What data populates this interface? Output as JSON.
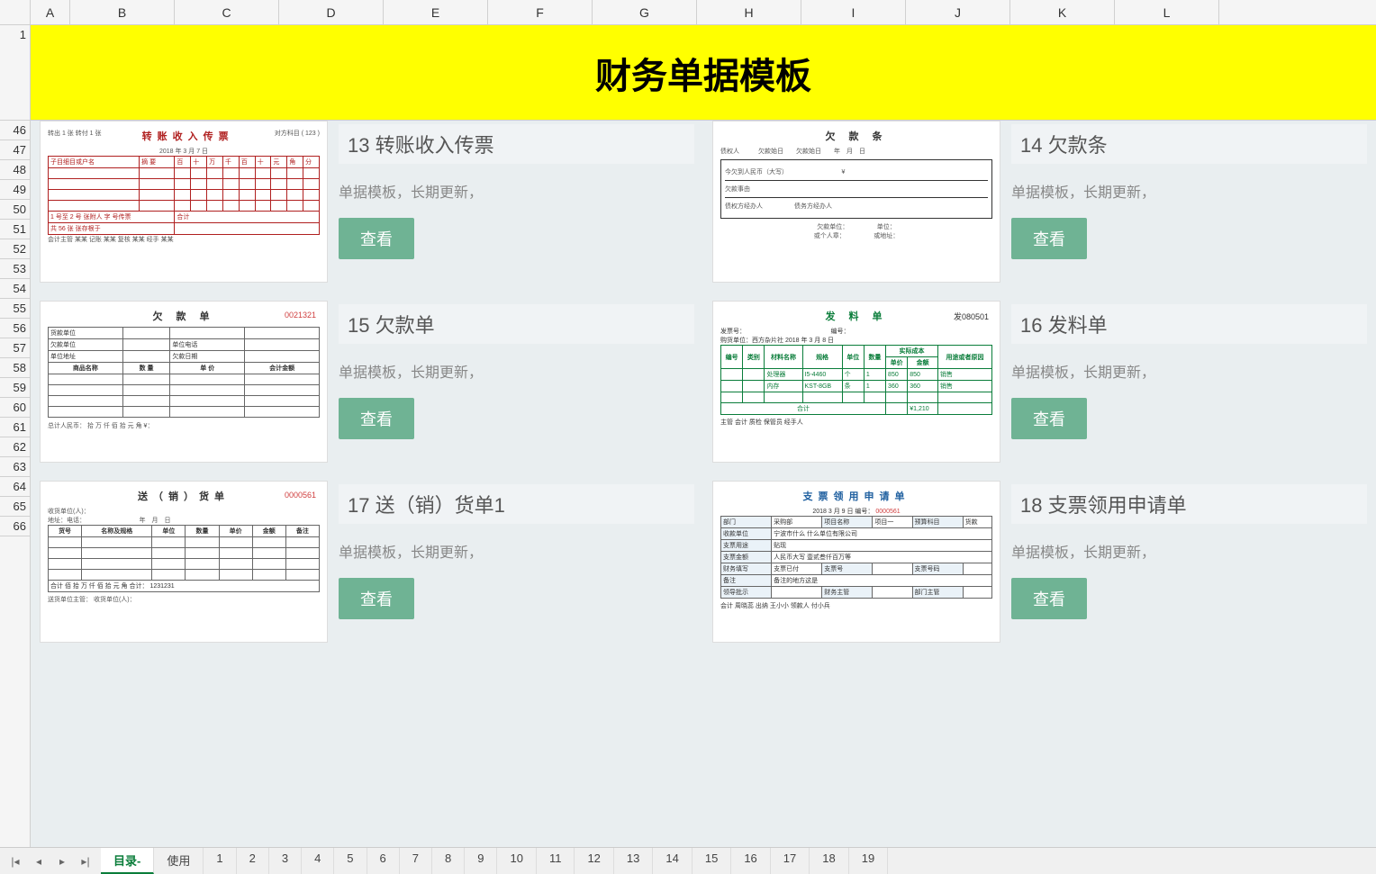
{
  "columns": [
    "A",
    "B",
    "C",
    "D",
    "E",
    "F",
    "G",
    "H",
    "I",
    "J",
    "K",
    "L"
  ],
  "rows": [
    "1",
    "46",
    "47",
    "48",
    "49",
    "50",
    "51",
    "52",
    "53",
    "54",
    "55",
    "56",
    "57",
    "58",
    "59",
    "60",
    "61",
    "62",
    "63",
    "64",
    "65",
    "66"
  ],
  "banner_title": "财务单据模板",
  "templates": [
    {
      "num": "13",
      "title": "13 转账收入传票",
      "desc": "单据模板，长期更新，",
      "btn": "查看",
      "preview_title": "转账收入传票",
      "preview_style": "red",
      "preview_no": "",
      "sub": "2018 年 3 月 7 日"
    },
    {
      "num": "14",
      "title": "14 欠款条",
      "desc": "单据模板，长期更新，",
      "btn": "查看",
      "preview_title": "欠 款 条",
      "preview_style": "plain",
      "preview_no": "",
      "sub": "今欠到人民币（大写）"
    },
    {
      "num": "15",
      "title": "15 欠款单",
      "desc": "单据模板，长期更新，",
      "btn": "查看",
      "preview_title": "欠 款 单",
      "preview_style": "plain",
      "preview_no": "0021321",
      "sub": "总计人民币：  拾 万 仟 佰 拾 元 角 ¥："
    },
    {
      "num": "16",
      "title": "16 发料单",
      "desc": "单据模板，长期更新，",
      "btn": "查看",
      "preview_title": "发 料 单",
      "preview_style": "green",
      "preview_no": "发080501",
      "sub": "购货单位：西方杂片社  2018 年 3 月 8 日"
    },
    {
      "num": "17",
      "title": "17 送（销）货单1",
      "desc": "单据模板，长期更新，",
      "btn": "查看",
      "preview_title": "送（销）货单",
      "preview_style": "plain",
      "preview_no": "0000561",
      "sub": "收货单位(人)："
    },
    {
      "num": "18",
      "title": "18 支票领用申请单",
      "desc": "单据模板，长期更新，",
      "btn": "查看",
      "preview_title": "支票领用申请单",
      "preview_style": "blue",
      "preview_no": "0000561",
      "sub": "2018  3 月 9 日  编号："
    }
  ],
  "preview_details": {
    "13": {
      "meta_top": "转出 1 张 转付 1 张",
      "meta_right": "对方科目 ( 123 )",
      "row1": "子目细目或户名",
      "footer": "会计主管 某某  记账 某某  复核 某某  经手 某某"
    },
    "14": {
      "line1": "债权人",
      "line2": "欠款事由",
      "line3": "债权方经办人",
      "line4": "欠款单位：",
      "line5": "或个人章："
    },
    "15": {
      "h1": "货款单位",
      "h2": "欠款单位",
      "h3": "单位地址",
      "h4": "单位电话",
      "h5": "欠款日期",
      "cols": [
        "商品名称",
        "数 量",
        "单 价",
        "会计金额"
      ]
    },
    "16": {
      "cols": [
        "编号",
        "类别",
        "材料名称",
        "规格",
        "单位",
        "数量",
        "单价",
        "金额",
        "用途或者原因"
      ],
      "r1": [
        "",
        "",
        "处理器",
        "I5-4460",
        "个",
        "1",
        "850",
        "850",
        "销售"
      ],
      "r2": [
        "",
        "",
        "内存",
        "KST-8GB",
        "条",
        "1",
        "360",
        "360",
        "销售"
      ],
      "total": "合计",
      "total_amt": "¥1,210",
      "footer": "主管   会计   质检   保管员   经手人"
    },
    "17": {
      "line1": "地址：电话：",
      "cols": [
        "货号",
        "名称及规格",
        "单位",
        "数量",
        "单价",
        "金额",
        "备注"
      ],
      "total": "合计  佰 拾 万 仟 佰 拾 元 角  合计： 1231231",
      "footer": "送货单位主管：      收货单位(人)："
    },
    "18": {
      "rows": [
        [
          "部门",
          "采购部",
          "项目名称",
          "项目一",
          "预算科目",
          "货款"
        ],
        [
          "收款单位",
          "宁波市什么 什么单位有限公司",
          "",
          "",
          "",
          ""
        ],
        [
          "支票用途",
          "贴现",
          "",
          "",
          "",
          ""
        ],
        [
          "支票金额",
          "人民币大写 壹贰叁仟百万等",
          "",
          "",
          "",
          ""
        ],
        [
          "财务填写",
          "支票已付",
          "",
          "支票号",
          "",
          "支票号码"
        ],
        [
          "备注",
          "备注的地方这是",
          "",
          "",
          "",
          ""
        ]
      ],
      "footer": "会计 周晓蕊  出纳 王小小  领款人 付小兵"
    }
  },
  "sheet_tabs": [
    "目录-",
    "使用",
    "1",
    "2",
    "3",
    "4",
    "5",
    "6",
    "7",
    "8",
    "9",
    "10",
    "11",
    "12",
    "13",
    "14",
    "15",
    "16",
    "17",
    "18",
    "19"
  ],
  "active_tab": "目录-",
  "colors": {
    "banner_bg": "#ffff00",
    "btn_bg": "#6fb394",
    "red": "#b02020",
    "green": "#0a7d3a",
    "blue": "#2060a0"
  }
}
